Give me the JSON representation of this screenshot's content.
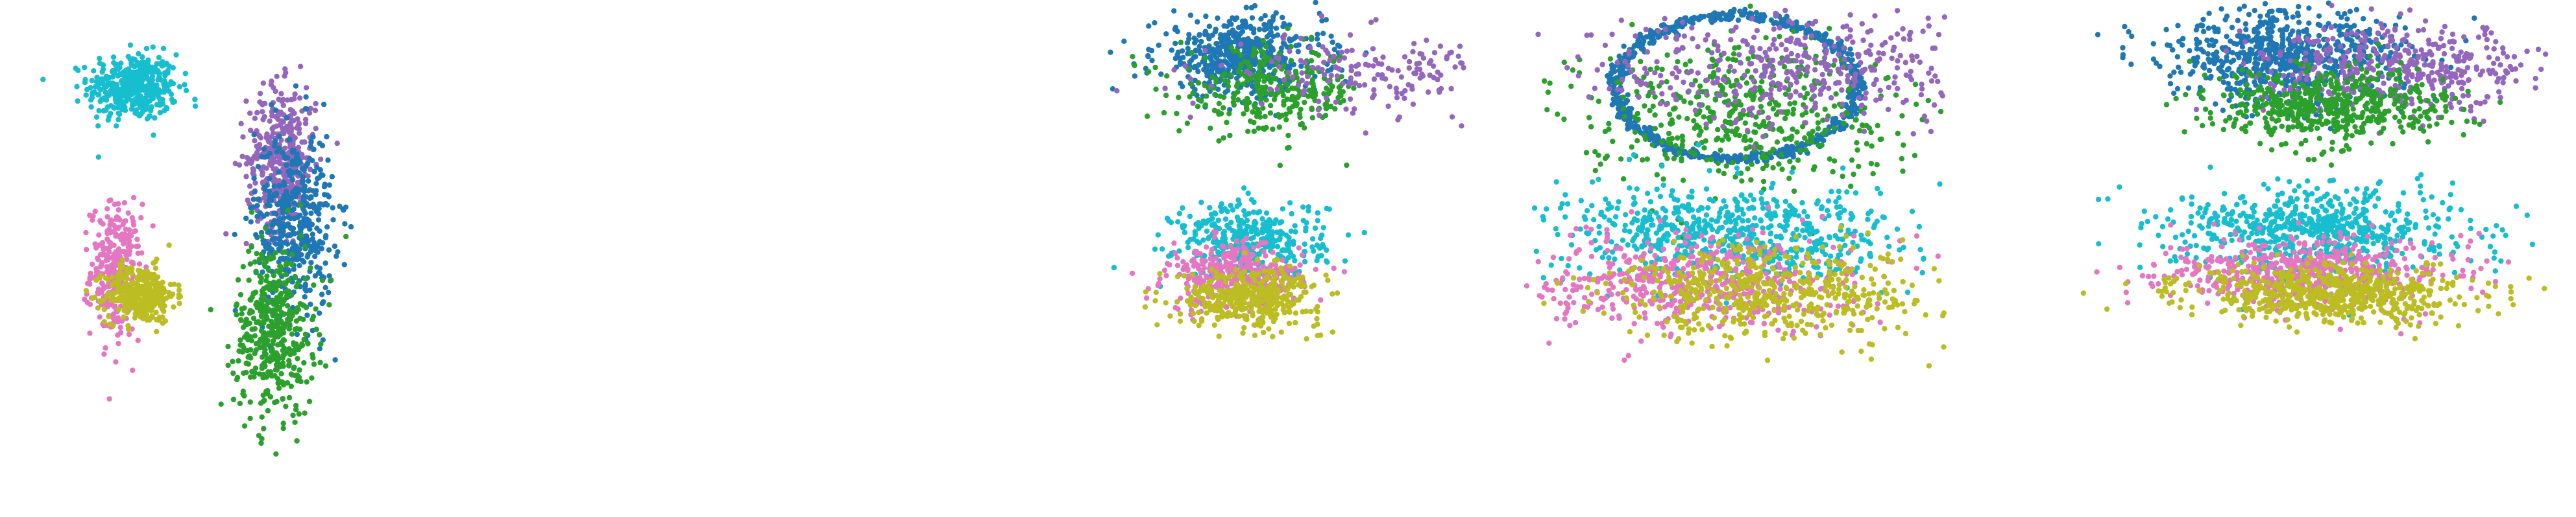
{
  "palette": {
    "blue": "#1f77b4",
    "green": "#2ca02c",
    "purple": "#9467bd",
    "pink": "#e377c2",
    "olive": "#bcbd22",
    "cyan": "#17becf"
  },
  "chart_data": [
    {
      "type": "scatter",
      "grid": false,
      "axes_visible": false,
      "clusters": [
        {
          "color": "cyan",
          "cx": -0.55,
          "cy": 0.72,
          "sx": 0.09,
          "sy": 0.07,
          "n": 420
        },
        {
          "color": "pink",
          "cx": -0.62,
          "cy": -0.05,
          "sx": 0.05,
          "sy": 0.14,
          "n": 300
        },
        {
          "color": "olive",
          "cx": -0.52,
          "cy": -0.15,
          "sx": 0.07,
          "sy": 0.06,
          "n": 320
        },
        {
          "color": "purple",
          "cx": 0.05,
          "cy": 0.42,
          "sx": 0.07,
          "sy": 0.15,
          "n": 420
        },
        {
          "color": "blue",
          "cx": 0.1,
          "cy": 0.15,
          "sx": 0.08,
          "sy": 0.2,
          "n": 460
        },
        {
          "color": "green",
          "cx": 0.02,
          "cy": -0.3,
          "sx": 0.08,
          "sy": 0.18,
          "n": 440
        }
      ]
    },
    {
      "type": "scatter",
      "grid": false,
      "axes_visible": false,
      "clusters": [
        {
          "color": "blue",
          "cx": 0.0,
          "cy": 0.85,
          "sx": 0.2,
          "sy": 0.08,
          "n": 520
        },
        {
          "color": "green",
          "cx": 0.15,
          "cy": 0.7,
          "sx": 0.22,
          "sy": 0.09,
          "n": 300
        },
        {
          "color": "purple",
          "cx": 0.75,
          "cy": 0.78,
          "sx": 0.4,
          "sy": 0.08,
          "n": 220
        },
        {
          "color": "cyan",
          "cx": 0.05,
          "cy": 0.08,
          "sx": 0.18,
          "sy": 0.08,
          "n": 360
        },
        {
          "color": "pink",
          "cx": -0.02,
          "cy": -0.08,
          "sx": 0.16,
          "sy": 0.07,
          "n": 380
        },
        {
          "color": "olive",
          "cx": 0.05,
          "cy": -0.16,
          "sx": 0.17,
          "sy": 0.06,
          "n": 380
        }
      ]
    },
    {
      "type": "scatter",
      "grid": false,
      "axes_visible": false,
      "clusters": [
        {
          "color": "blue",
          "shape": "ellipse-ring",
          "cx": 0.0,
          "cy": 0.72,
          "sx": 0.62,
          "sy": 0.3,
          "n": 700
        },
        {
          "color": "green",
          "cx": 0.0,
          "cy": 0.62,
          "sx": 0.4,
          "sy": 0.15,
          "n": 500
        },
        {
          "color": "purple",
          "cx": 0.35,
          "cy": 0.8,
          "sx": 0.55,
          "sy": 0.12,
          "n": 420
        },
        {
          "color": "cyan",
          "cx": 0.0,
          "cy": 0.1,
          "sx": 0.45,
          "sy": 0.1,
          "n": 650
        },
        {
          "color": "pink",
          "cx": -0.2,
          "cy": -0.1,
          "sx": 0.4,
          "sy": 0.1,
          "n": 520
        },
        {
          "color": "olive",
          "cx": 0.2,
          "cy": -0.14,
          "sx": 0.42,
          "sy": 0.1,
          "n": 520
        }
      ]
    },
    {
      "type": "scatter",
      "grid": false,
      "axes_visible": false,
      "clusters": [
        {
          "color": "blue",
          "cx": -0.15,
          "cy": 0.84,
          "sx": 0.25,
          "sy": 0.1,
          "n": 700
        },
        {
          "color": "purple",
          "cx": 0.35,
          "cy": 0.8,
          "sx": 0.3,
          "sy": 0.09,
          "n": 420
        },
        {
          "color": "green",
          "cx": 0.05,
          "cy": 0.64,
          "sx": 0.25,
          "sy": 0.08,
          "n": 520
        },
        {
          "color": "cyan",
          "cx": 0.0,
          "cy": 0.12,
          "sx": 0.3,
          "sy": 0.09,
          "n": 650
        },
        {
          "color": "pink",
          "cx": -0.05,
          "cy": -0.06,
          "sx": 0.3,
          "sy": 0.07,
          "n": 560
        },
        {
          "color": "olive",
          "cx": 0.05,
          "cy": -0.15,
          "sx": 0.3,
          "sy": 0.06,
          "n": 600
        }
      ]
    }
  ]
}
